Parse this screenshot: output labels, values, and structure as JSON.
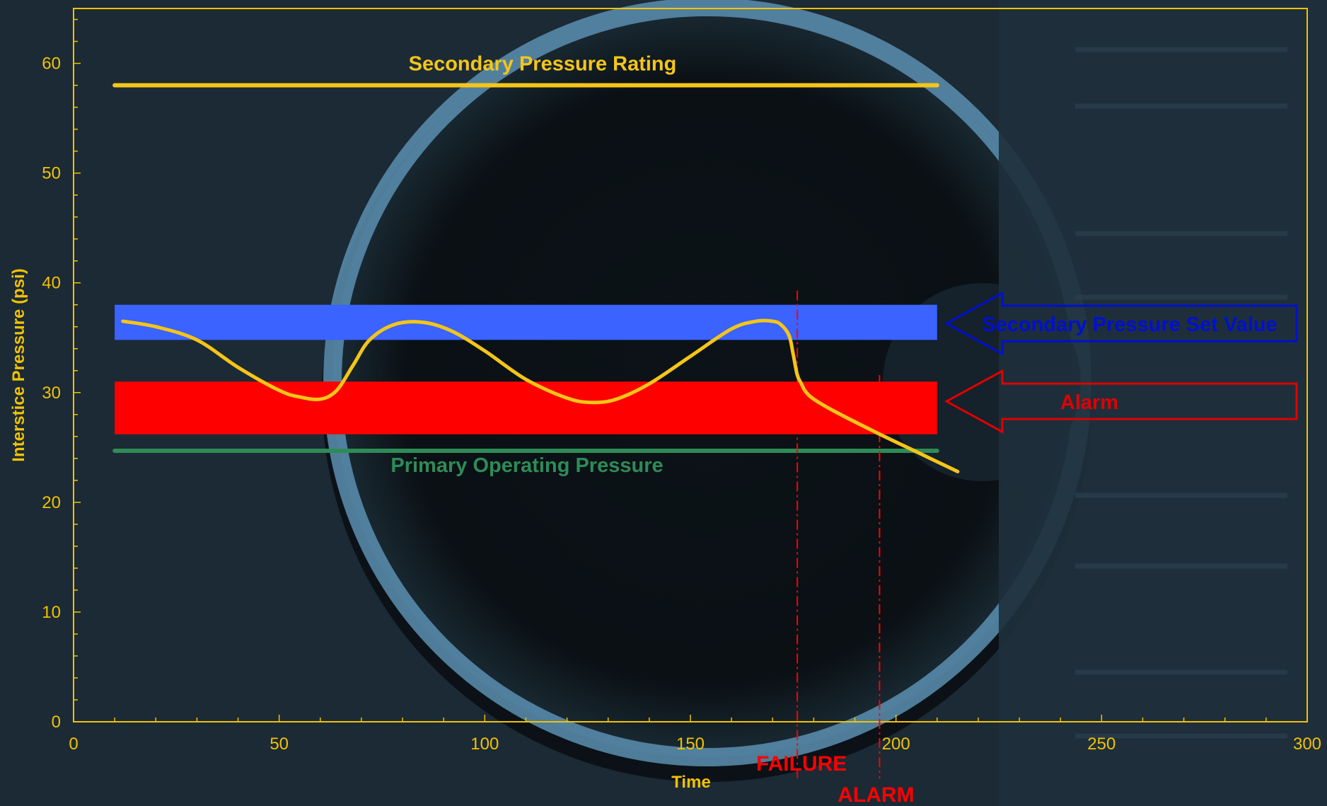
{
  "chart_data": {
    "type": "line",
    "title": "",
    "xlabel": "Time",
    "ylabel": "Interstice Pressure (psi)",
    "xlim": [
      0,
      300
    ],
    "ylim": [
      0,
      65
    ],
    "xticks": [
      0,
      50,
      100,
      150,
      200,
      250,
      300
    ],
    "yticks": [
      0,
      10,
      20,
      30,
      40,
      50,
      60
    ],
    "grid": false,
    "colors": {
      "axis": "#f2c200",
      "pressure_line": "#f5c518",
      "secondary_rating": "#f5c518",
      "set_value_band": "#3a63ff",
      "alarm_band": "#ff0000",
      "primary_operating": "#2e8b57",
      "set_value_arrow": "#0010d0",
      "alarm_arrow": "#e00000",
      "event_line": "#ff0000"
    },
    "reference_lines": [
      {
        "name": "Secondary Pressure Rating",
        "y": 58,
        "x_start": 10,
        "x_end": 210
      },
      {
        "name": "Primary Operating Pressure",
        "y": 24.7,
        "x_start": 10,
        "x_end": 210
      }
    ],
    "bands": [
      {
        "name": "Secondary Pressure Set Value",
        "y_min": 34.8,
        "y_max": 38,
        "x_start": 10,
        "x_end": 210
      },
      {
        "name": "Alarm",
        "y_min": 26.2,
        "y_max": 31,
        "x_start": 10,
        "x_end": 210
      }
    ],
    "series": [
      {
        "x": [
          12,
          20,
          30,
          40,
          50,
          55,
          60,
          64,
          68,
          72,
          78,
          85,
          92,
          100,
          110,
          120,
          126,
          132,
          140,
          150,
          160,
          166,
          170,
          172,
          174,
          175,
          176,
          177,
          178,
          180,
          185,
          195,
          205,
          215
        ],
        "values": [
          36.5,
          36.0,
          34.8,
          32.3,
          30.2,
          29.6,
          29.4,
          30.2,
          32.5,
          34.8,
          36.2,
          36.4,
          35.6,
          33.8,
          31.2,
          29.5,
          29.1,
          29.4,
          30.8,
          33.3,
          35.8,
          36.5,
          36.5,
          36.2,
          35.2,
          33.5,
          31.6,
          30.8,
          30.1,
          29.4,
          28.3,
          26.4,
          24.6,
          22.8
        ]
      }
    ],
    "events": [
      {
        "label": "FAILURE",
        "x": 176
      },
      {
        "label": "ALARM",
        "x": 196
      }
    ],
    "callouts": [
      {
        "label": "Secondary Pressure Set Value"
      },
      {
        "label": "Alarm"
      }
    ]
  }
}
